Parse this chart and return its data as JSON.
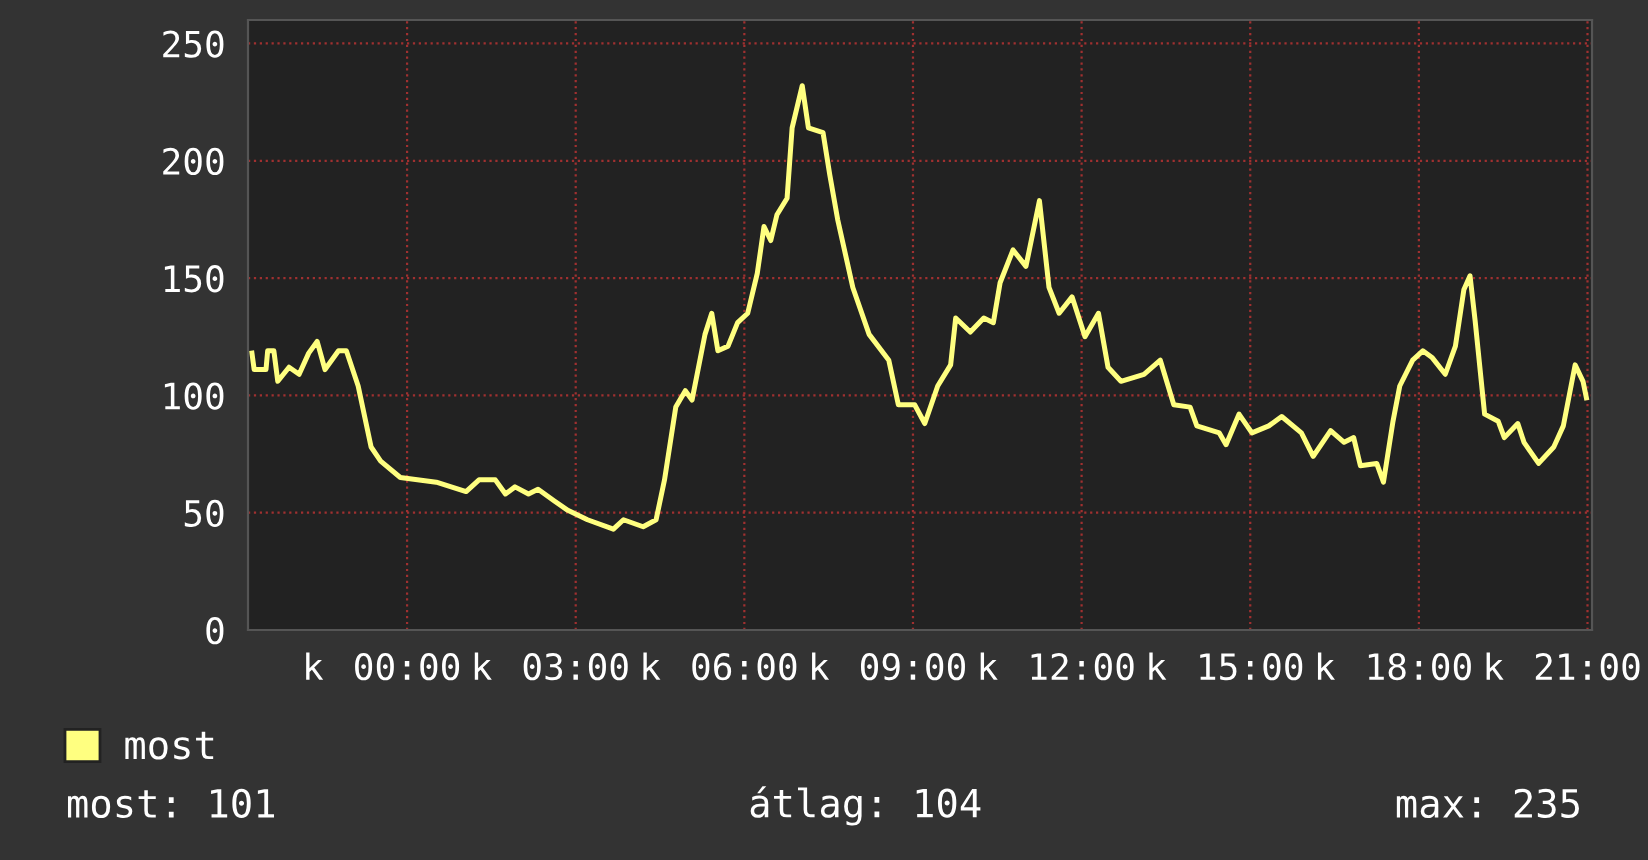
{
  "chart_data": {
    "type": "line",
    "x": [
      -2.76,
      -2.72,
      -2.51,
      -2.48,
      -2.37,
      -2.3,
      -2.1,
      -1.92,
      -1.75,
      -1.6,
      -1.46,
      -1.22,
      -1.08,
      -0.87,
      -0.64,
      -0.47,
      -0.12,
      0.52,
      1.05,
      1.28,
      1.57,
      1.75,
      1.92,
      2.16,
      2.33,
      2.62,
      2.86,
      3.21,
      3.67,
      3.85,
      4.2,
      4.43,
      4.58,
      4.78,
      4.95,
      5.07,
      5.3,
      5.42,
      5.53,
      5.71,
      5.88,
      6.06,
      6.23,
      6.35,
      6.47,
      6.58,
      6.76,
      6.85,
      7.03,
      7.14,
      7.4,
      7.52,
      7.66,
      7.93,
      8.22,
      8.57,
      8.74,
      9.03,
      9.21,
      9.44,
      9.67,
      9.76,
      10.02,
      10.26,
      10.43,
      10.55,
      10.78,
      11.01,
      11.25,
      11.42,
      11.6,
      11.83,
      12.06,
      12.3,
      12.47,
      12.7,
      13.11,
      13.4,
      13.64,
      13.93,
      14.05,
      14.45,
      14.57,
      14.8,
      15.03,
      15.33,
      15.56,
      15.91,
      16.12,
      16.43,
      16.67,
      16.84,
      16.96,
      17.25,
      17.37,
      17.54,
      17.66,
      17.89,
      18.07,
      18.24,
      18.47,
      18.65,
      18.8,
      18.91,
      19.0,
      19.17,
      19.41,
      19.52,
      19.76,
      19.87,
      20.13,
      20.4,
      20.57,
      20.78,
      20.92,
      20.98
    ],
    "series": [
      {
        "name": "most",
        "color": "#ffff80",
        "values": [
          118,
          111,
          111,
          119,
          119,
          106,
          112,
          109,
          118,
          123,
          111,
          119,
          119,
          104,
          78,
          72,
          65,
          63,
          59,
          64,
          64,
          58,
          61,
          58,
          60,
          55,
          51,
          47,
          43,
          47,
          44,
          47,
          64,
          95,
          102,
          98,
          126,
          135,
          119,
          121,
          131,
          135,
          152,
          172,
          166,
          177,
          184,
          214,
          232,
          214,
          212,
          194,
          175,
          146,
          126,
          115,
          96,
          96,
          88,
          104,
          113,
          133,
          127,
          133,
          131,
          148,
          162,
          155,
          183,
          146,
          135,
          142,
          125,
          135,
          112,
          106,
          109,
          115,
          96,
          95,
          87,
          84,
          79,
          92,
          84,
          87,
          91,
          84,
          74,
          85,
          80,
          82,
          70,
          71,
          63,
          89,
          104,
          115,
          119,
          116,
          109,
          121,
          145,
          151,
          132,
          92,
          89,
          82,
          88,
          80,
          71,
          78,
          87,
          113,
          106,
          99
        ]
      }
    ],
    "xlim": [
      -2.83,
      21.08
    ],
    "xticks": [
      {
        "value": 0,
        "label": "00:00"
      },
      {
        "value": 3,
        "label": "03:00"
      },
      {
        "value": 6,
        "label": "06:00"
      },
      {
        "value": 9,
        "label": "09:00"
      },
      {
        "value": 12,
        "label": "12:00"
      },
      {
        "value": 15,
        "label": "15:00"
      },
      {
        "value": 18,
        "label": "18:00"
      },
      {
        "value": 21,
        "label": "21:00"
      }
    ],
    "ylim": [
      0,
      260
    ],
    "yticks": [
      0,
      50,
      100,
      150,
      200,
      250
    ],
    "grid": true,
    "legend": "bottom left",
    "line_style": "solid",
    "annotations": [
      "most: 101",
      "átlag: 104",
      "max: 235",
      "k",
      "k",
      "k",
      "k",
      "k",
      "k",
      "k",
      "k"
    ]
  }
}
